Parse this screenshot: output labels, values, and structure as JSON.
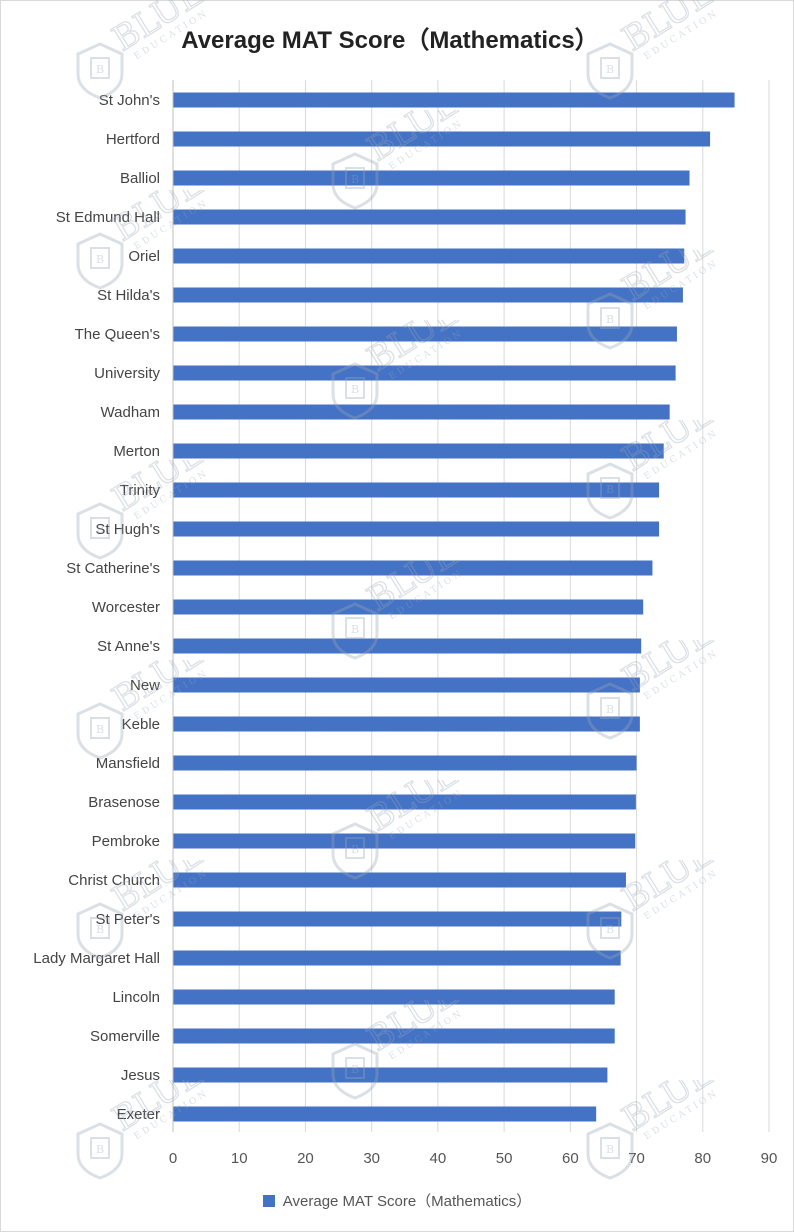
{
  "chart_data": {
    "type": "bar",
    "orientation": "horizontal",
    "title": "Average MAT Score（Mathematics）",
    "xlabel": "",
    "ylabel": "",
    "xlim": [
      0,
      90
    ],
    "xticks": [
      0,
      10,
      20,
      30,
      40,
      50,
      60,
      70,
      80,
      90
    ],
    "grid": "vertical",
    "legend": "bottom",
    "categories": [
      "St John's",
      "Hertford",
      "Balliol",
      "St Edmund Hall",
      "Oriel",
      "St Hilda's",
      "The Queen's",
      "University",
      "Wadham",
      "Merton",
      "Trinity",
      "St Hugh's",
      "St Catherine's",
      "Worcester",
      "St Anne's",
      "New",
      "Keble",
      "Mansfield",
      "Brasenose",
      "Pembroke",
      "Christ Church",
      "St Peter's",
      "Lady Margaret Hall",
      "Lincoln",
      "Somerville",
      "Jesus",
      "Exeter"
    ],
    "series": [
      {
        "name": "Average MAT Score（Mathematics）",
        "color": "#4472c4",
        "values": [
          84.8,
          81.1,
          78.0,
          77.4,
          77.2,
          77.0,
          76.1,
          75.9,
          75.0,
          74.1,
          73.4,
          73.4,
          72.4,
          71.0,
          70.7,
          70.5,
          70.5,
          70.0,
          69.9,
          69.8,
          68.4,
          67.7,
          67.6,
          66.7,
          66.7,
          65.6,
          63.9
        ]
      }
    ]
  },
  "watermark": {
    "text": "BLUE",
    "subtext": "EDUCATION",
    "badge_letter": "B",
    "color": "#9aa8b8"
  }
}
